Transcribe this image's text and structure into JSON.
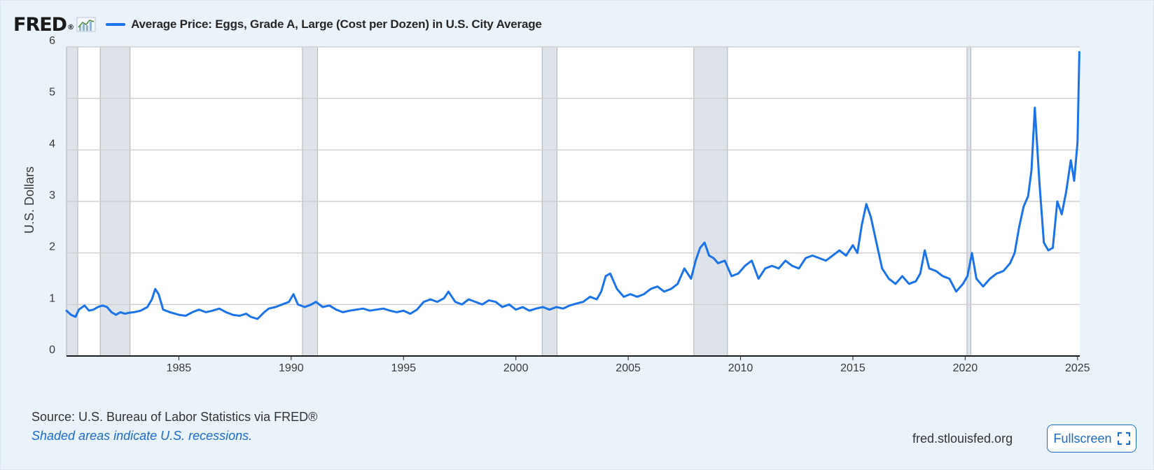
{
  "header": {
    "logo_text": "FRED",
    "logo_reg": "®",
    "logo_icon": "fred-chart-icon",
    "series_title": "Average Price: Eggs, Grade A, Large (Cost per Dozen) in U.S. City Average"
  },
  "colors": {
    "line": "#1a73e8",
    "recession": "#dde3e9",
    "grid": "#cfcfcf",
    "background": "#eaf2fa",
    "link": "#1a6bc9"
  },
  "footer": {
    "source": "Source: U.S. Bureau of Labor Statistics via FRED®",
    "recession_note": "Shaded areas indicate U.S. recessions.",
    "site": "fred.stlouisfed.org",
    "fullscreen_label": "Fullscreen",
    "fullscreen_icon": "expand-icon"
  },
  "chart_data": {
    "type": "line",
    "title": "Average Price: Eggs, Grade A, Large (Cost per Dozen) in U.S. City Average",
    "xlabel": "",
    "ylabel": "U.S. Dollars",
    "xlim": [
      1980.0,
      2025.1
    ],
    "ylim": [
      0,
      6
    ],
    "x_ticks": [
      1985,
      1990,
      1995,
      2000,
      2005,
      2010,
      2015,
      2020,
      2025
    ],
    "y_ticks": [
      0,
      1,
      2,
      3,
      4,
      5,
      6
    ],
    "grid": "horizontal",
    "legend_position": "top-left",
    "recessions": [
      [
        1980.0,
        1980.5
      ],
      [
        1981.5,
        1982.83
      ],
      [
        1990.5,
        1991.17
      ],
      [
        2001.17,
        2001.83
      ],
      [
        2007.92,
        2009.42
      ],
      [
        2020.08,
        2020.25
      ]
    ],
    "series": [
      {
        "name": "Average Price: Eggs, Grade A, Large (Cost per Dozen) in U.S. City Average",
        "x": [
          1980.0,
          1980.2,
          1980.4,
          1980.55,
          1980.8,
          1981.0,
          1981.2,
          1981.4,
          1981.6,
          1981.8,
          1982.0,
          1982.2,
          1982.4,
          1982.6,
          1982.8,
          1983.0,
          1983.3,
          1983.6,
          1983.8,
          1983.95,
          1984.1,
          1984.3,
          1984.6,
          1985.0,
          1985.3,
          1985.6,
          1985.9,
          1986.2,
          1986.5,
          1986.8,
          1987.1,
          1987.4,
          1987.7,
          1988.0,
          1988.2,
          1988.5,
          1988.8,
          1989.0,
          1989.3,
          1989.6,
          1989.9,
          1990.1,
          1990.3,
          1990.6,
          1990.9,
          1991.1,
          1991.4,
          1991.7,
          1992.0,
          1992.3,
          1992.6,
          1992.9,
          1993.2,
          1993.5,
          1993.8,
          1994.1,
          1994.4,
          1994.7,
          1995.0,
          1995.3,
          1995.6,
          1995.9,
          1996.2,
          1996.5,
          1996.8,
          1997.0,
          1997.3,
          1997.6,
          1997.9,
          1998.2,
          1998.5,
          1998.8,
          1999.1,
          1999.4,
          1999.7,
          2000.0,
          2000.3,
          2000.6,
          2000.9,
          2001.2,
          2001.5,
          2001.8,
          2002.1,
          2002.4,
          2002.7,
          2003.0,
          2003.3,
          2003.6,
          2003.8,
          2004.0,
          2004.2,
          2004.5,
          2004.8,
          2005.1,
          2005.4,
          2005.7,
          2006.0,
          2006.3,
          2006.6,
          2006.9,
          2007.2,
          2007.5,
          2007.8,
          2008.0,
          2008.2,
          2008.4,
          2008.6,
          2008.8,
          2009.0,
          2009.3,
          2009.6,
          2009.9,
          2010.2,
          2010.5,
          2010.8,
          2011.1,
          2011.4,
          2011.7,
          2012.0,
          2012.3,
          2012.6,
          2012.9,
          2013.2,
          2013.5,
          2013.8,
          2014.1,
          2014.4,
          2014.7,
          2015.0,
          2015.2,
          2015.4,
          2015.6,
          2015.8,
          2016.0,
          2016.3,
          2016.6,
          2016.9,
          2017.2,
          2017.5,
          2017.8,
          2018.0,
          2018.2,
          2018.4,
          2018.7,
          2019.0,
          2019.3,
          2019.6,
          2019.9,
          2020.1,
          2020.3,
          2020.5,
          2020.8,
          2021.1,
          2021.4,
          2021.7,
          2022.0,
          2022.2,
          2022.4,
          2022.6,
          2022.8,
          2022.95,
          2023.1,
          2023.3,
          2023.5,
          2023.7,
          2023.9,
          2024.1,
          2024.3,
          2024.5,
          2024.7,
          2024.85,
          2025.0,
          2025.08
        ],
        "values": [
          0.88,
          0.8,
          0.76,
          0.9,
          0.98,
          0.88,
          0.9,
          0.95,
          0.98,
          0.95,
          0.85,
          0.8,
          0.85,
          0.82,
          0.84,
          0.85,
          0.88,
          0.95,
          1.1,
          1.3,
          1.2,
          0.9,
          0.85,
          0.8,
          0.78,
          0.85,
          0.9,
          0.85,
          0.88,
          0.92,
          0.85,
          0.8,
          0.78,
          0.82,
          0.76,
          0.72,
          0.85,
          0.92,
          0.95,
          1.0,
          1.05,
          1.2,
          1.0,
          0.95,
          1.0,
          1.05,
          0.95,
          0.98,
          0.9,
          0.85,
          0.88,
          0.9,
          0.92,
          0.88,
          0.9,
          0.92,
          0.88,
          0.85,
          0.88,
          0.82,
          0.9,
          1.05,
          1.1,
          1.05,
          1.12,
          1.25,
          1.05,
          1.0,
          1.1,
          1.05,
          1.0,
          1.08,
          1.05,
          0.95,
          1.0,
          0.9,
          0.95,
          0.88,
          0.92,
          0.95,
          0.9,
          0.95,
          0.92,
          0.98,
          1.02,
          1.05,
          1.15,
          1.1,
          1.25,
          1.55,
          1.6,
          1.3,
          1.15,
          1.2,
          1.15,
          1.2,
          1.3,
          1.35,
          1.25,
          1.3,
          1.4,
          1.7,
          1.5,
          1.85,
          2.1,
          2.2,
          1.95,
          1.9,
          1.8,
          1.85,
          1.55,
          1.6,
          1.75,
          1.85,
          1.5,
          1.7,
          1.75,
          1.7,
          1.85,
          1.75,
          1.7,
          1.9,
          1.95,
          1.9,
          1.85,
          1.95,
          2.05,
          1.95,
          2.15,
          2.0,
          2.55,
          2.95,
          2.7,
          2.3,
          1.7,
          1.5,
          1.4,
          1.55,
          1.4,
          1.45,
          1.6,
          2.05,
          1.7,
          1.65,
          1.55,
          1.5,
          1.25,
          1.4,
          1.55,
          2.0,
          1.5,
          1.35,
          1.5,
          1.6,
          1.65,
          1.8,
          2.0,
          2.5,
          2.9,
          3.1,
          3.6,
          4.82,
          3.4,
          2.2,
          2.05,
          2.1,
          3.0,
          2.75,
          3.2,
          3.8,
          3.4,
          4.15,
          5.9
        ]
      }
    ]
  }
}
